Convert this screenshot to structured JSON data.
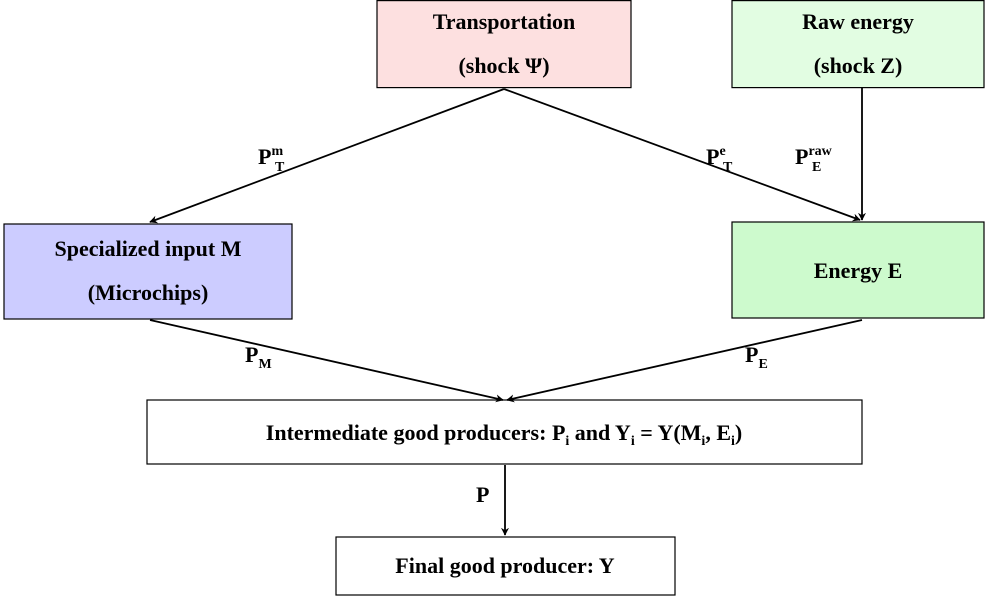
{
  "nodes": [
    {
      "lines": [
        "Transportation",
        "(shock Ψ)"
      ]
    },
    {
      "lines": [
        "Raw energy",
        "(shock Z)"
      ]
    },
    {
      "lines": [
        "Specialized input M",
        "(Microchips)"
      ]
    },
    {
      "lines": [
        "Energy E"
      ]
    },
    {
      "parts": [
        {
          "text": "Intermediate good producers: P"
        },
        {
          "sub": "i"
        },
        {
          "text": " and Y"
        },
        {
          "sub": "i"
        },
        {
          "text": " = Y(M"
        },
        {
          "sub": "i"
        },
        {
          "text": ", E"
        },
        {
          "sub": "i"
        },
        {
          "text": ")"
        }
      ]
    },
    {
      "lines": [
        "Final good producer: Y"
      ]
    }
  ],
  "edges": [
    {
      "label": {
        "base": "P",
        "sub": "T",
        "sup": "m"
      }
    },
    {
      "label": {
        "base": "P",
        "sub": "T",
        "sup": "e"
      }
    },
    {
      "label": {
        "base": "P",
        "sub": "E",
        "sup": "raw"
      }
    },
    {
      "label": {
        "base": "P",
        "sub": "M"
      }
    },
    {
      "label": {
        "base": "P",
        "sub": "E"
      }
    },
    {
      "label": {
        "base": "P"
      }
    }
  ]
}
